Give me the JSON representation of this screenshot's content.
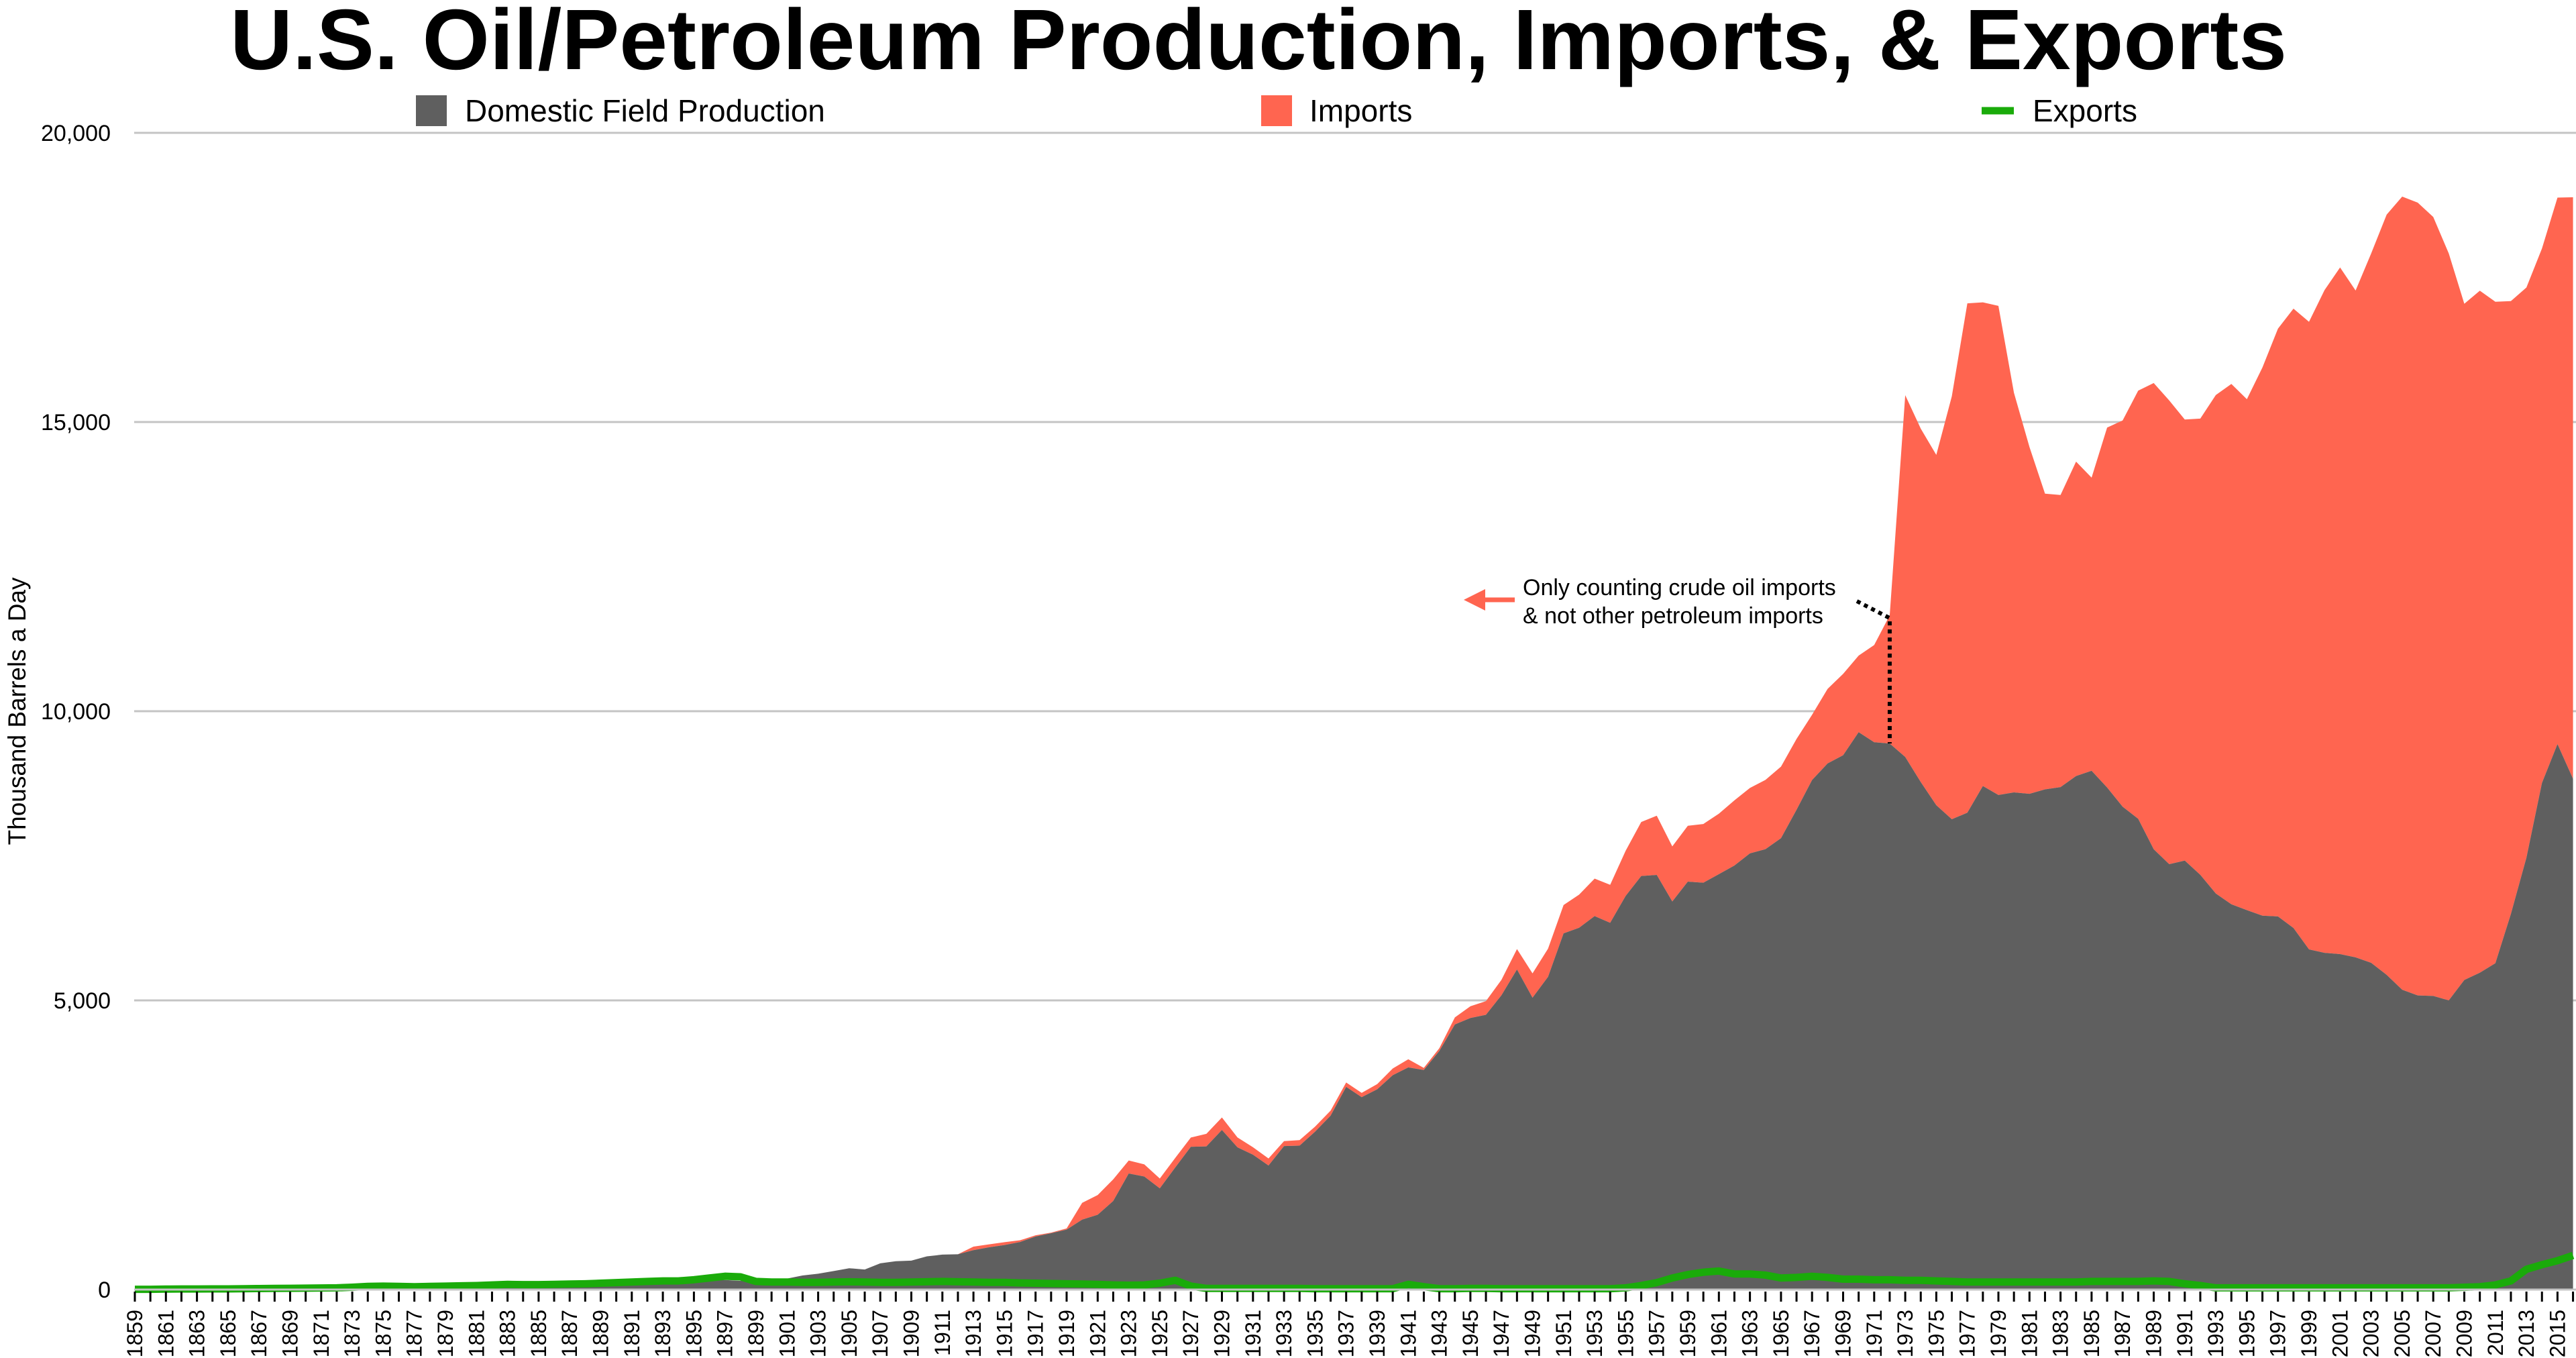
{
  "chart_data": {
    "type": "area",
    "stacked": true,
    "title": "U.S. Oil/Petroleum Production, Imports, & Exports",
    "ylabel": "Thousand Barrels a Day",
    "xlabel": "",
    "ylim": [
      0,
      20000
    ],
    "yticks": [
      0,
      5000,
      10000,
      15000,
      20000
    ],
    "ytick_labels": [
      "0",
      "5,000",
      "10,000",
      "15,000",
      "20,000"
    ],
    "x_range": [
      1859,
      2016
    ],
    "x_tick_label_step": 2,
    "grid": "horizontal",
    "legend_position": "top",
    "colors": {
      "production": "#5f5f5f",
      "imports": "#ff6550",
      "exports": "#1aab0a",
      "grid": "#c4c4c4"
    },
    "series": [
      {
        "name": "Domestic Field Production",
        "kind": "area",
        "start_year": 1859,
        "values": [
          0,
          1,
          6,
          8,
          7,
          6,
          7,
          10,
          9,
          10,
          11,
          14,
          14,
          17,
          27,
          30,
          34,
          25,
          37,
          42,
          54,
          72,
          76,
          83,
          64,
          66,
          60,
          77,
          77,
          75,
          96,
          125,
          149,
          138,
          133,
          135,
          144,
          167,
          165,
          151,
          156,
          174,
          190,
          243,
          274,
          320,
          369,
          346,
          454,
          490,
          500,
          574,
          604,
          611,
          682,
          731,
          770,
          822,
          918,
          974,
          1037,
          1210,
          1294,
          1531,
          2007,
          1955,
          1750,
          2113,
          2469,
          2476,
          2760,
          2460,
          2332,
          2145,
          2481,
          2488,
          2730,
          3007,
          3505,
          3327,
          3463,
          3707,
          3842,
          3796,
          4125,
          4584,
          4695,
          4751,
          5088,
          5535,
          5046,
          5407,
          6158,
          6256,
          6458,
          6342,
          6807,
          7151,
          7170,
          6710,
          7054,
          7035,
          7183,
          7332,
          7542,
          7614,
          7804,
          8295,
          8810,
          9096,
          9238,
          9637,
          9463,
          9441,
          9208,
          8774,
          8375,
          8132,
          8245,
          8707,
          8552,
          8597,
          8572,
          8649,
          8688,
          8879,
          8971,
          8680,
          8349,
          8140,
          7613,
          7355,
          7417,
          7171,
          6847,
          6662,
          6560,
          6465,
          6452,
          6252,
          5881,
          5822,
          5801,
          5744,
          5649,
          5441,
          5184,
          5086,
          5077,
          5000,
          5353,
          5478,
          5643,
          6493,
          7467,
          8759,
          9431,
          8831
        ]
      },
      {
        "name": "Imports",
        "kind": "area",
        "start_year": 1859,
        "values": [
          0,
          0,
          0,
          0,
          0,
          0,
          0,
          0,
          0,
          0,
          0,
          0,
          0,
          0,
          0,
          0,
          0,
          0,
          0,
          0,
          0,
          0,
          0,
          0,
          0,
          0,
          0,
          0,
          0,
          0,
          0,
          0,
          0,
          0,
          0,
          0,
          0,
          0,
          0,
          0,
          0,
          0,
          0,
          0,
          0,
          0,
          0,
          0,
          0,
          0,
          0,
          0,
          0,
          0,
          60,
          50,
          50,
          30,
          20,
          10,
          20,
          290,
          340,
          375,
          225,
          210,
          170,
          165,
          160,
          217,
          216,
          170,
          129,
          122,
          86,
          96,
          88,
          88,
          75,
          74,
          90,
          116,
          140,
          37,
          48,
          121,
          204,
          236,
          267,
          353,
          421,
          487,
          491,
          573,
          648,
          656,
          782,
          934,
          1023,
          953,
          965,
          1015,
          1045,
          1126,
          1131,
          1198,
          1238,
          1225,
          1128,
          1290,
          1408,
          1324,
          1681,
          2216,
          6256,
          6112,
          6056,
          7313,
          8807,
          8363,
          8456,
          6909,
          5996,
          5113,
          5051,
          5437,
          5067,
          6224,
          6678,
          7402,
          8061,
          8018,
          7627,
          7888,
          8620,
          8996,
          8835,
          9478,
          10162,
          10708,
          10852,
          11459,
          11871,
          11530,
          12264,
          13145,
          13714,
          13707,
          13468,
          12915,
          11691,
          11793,
          11436,
          10598,
          9859,
          9241,
          9449,
          10055
        ]
      },
      {
        "name": "Exports",
        "kind": "line",
        "start_year": 1859,
        "values": [
          5,
          5,
          8,
          10,
          10,
          12,
          12,
          15,
          18,
          20,
          22,
          25,
          28,
          30,
          40,
          55,
          60,
          55,
          50,
          55,
          60,
          65,
          70,
          80,
          90,
          85,
          85,
          90,
          95,
          100,
          110,
          120,
          130,
          140,
          150,
          150,
          170,
          200,
          230,
          220,
          140,
          130,
          130,
          125,
          125,
          130,
          135,
          130,
          125,
          125,
          130,
          135,
          140,
          135,
          130,
          125,
          125,
          115,
          110,
          105,
          100,
          95,
          90,
          80,
          75,
          80,
          110,
          160,
          60,
          20,
          20,
          20,
          20,
          20,
          20,
          20,
          15,
          15,
          15,
          15,
          15,
          15,
          90,
          50,
          15,
          15,
          20,
          20,
          15,
          15,
          15,
          15,
          15,
          15,
          15,
          15,
          30,
          70,
          120,
          200,
          260,
          300,
          320,
          270,
          270,
          250,
          200,
          210,
          230,
          210,
          180,
          180,
          170,
          170,
          160,
          160,
          150,
          140,
          130,
          130,
          130,
          130,
          130,
          130,
          130,
          130,
          140,
          140,
          140,
          140,
          150,
          140,
          100,
          70,
          30,
          30,
          30,
          30,
          30,
          30,
          30,
          30,
          30,
          30,
          30,
          30,
          30,
          30,
          30,
          30,
          40,
          50,
          80,
          150,
          350,
          430,
          500,
          590
        ]
      }
    ],
    "annotations": [
      {
        "lines": [
          "Only counting crude oil imports",
          "& not other petroleum  imports"
        ],
        "applies_to_years_before": 1973,
        "marker_year": 1972
      }
    ]
  }
}
